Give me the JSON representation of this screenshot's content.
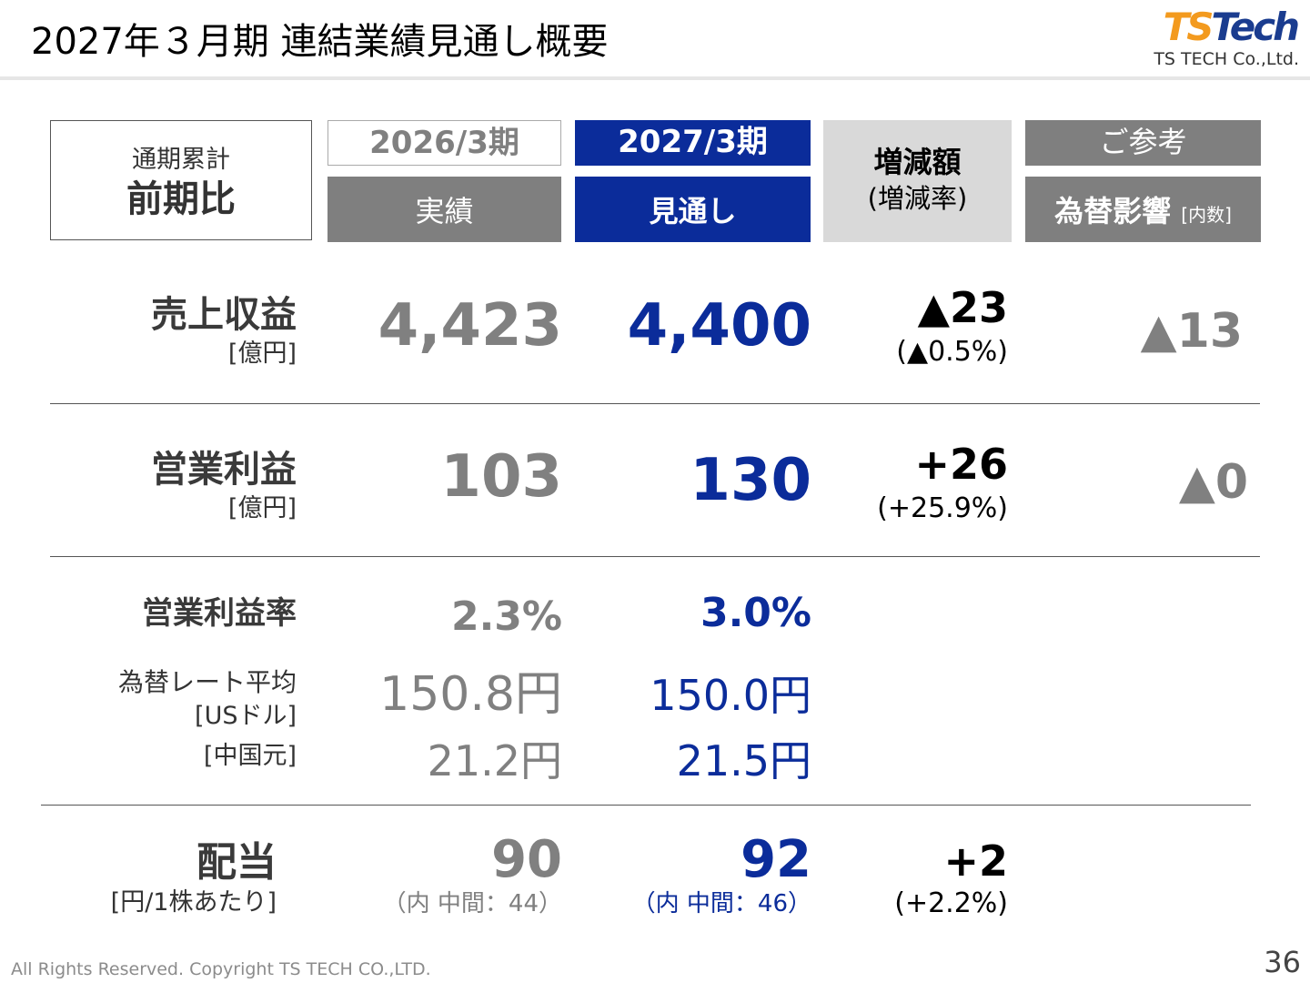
{
  "page": {
    "title": "2027年３月期 連結業績見通し概要",
    "page_number": "36",
    "footer": "All Rights Reserved. Copyright TS TECH CO.,LTD."
  },
  "logo": {
    "ts": "TS",
    "tech": "Tech",
    "sub": "TS TECH Co.,Ltd."
  },
  "header": {
    "label_line1": "通期累計",
    "label_line2": "前期比",
    "prev_year": "2026/3期",
    "prev_sub": "実績",
    "cur_year": "2027/3期",
    "cur_sub": "見通し",
    "diff_line1": "増減額",
    "diff_line2": "(増減率)",
    "ref_title": "ご参考",
    "ref_sub": "為替影響",
    "ref_sub_note": "[内数]"
  },
  "rows": {
    "sales": {
      "label": "売上収益",
      "unit": "[億円]",
      "prev": "4,423",
      "cur": "4,400",
      "diff": "▲23",
      "diff_rate": "(▲0.5%)",
      "fx": "▲13"
    },
    "op_income": {
      "label": "営業利益",
      "unit": "[億円]",
      "prev": "103",
      "cur": "130",
      "diff": "+26",
      "diff_rate": "(+25.9%)",
      "fx": "▲0"
    },
    "op_margin": {
      "label": "営業利益率",
      "prev": "2.3%",
      "cur": "3.0%"
    },
    "fx_rate": {
      "label": "為替レート平均",
      "usd_label": "[USドル]",
      "cny_label": "[中国元]",
      "usd_prev": "150.8円",
      "usd_cur": "150.0円",
      "cny_prev": "21.2円",
      "cny_cur": "21.5円"
    },
    "dividend": {
      "label": "配当",
      "unit": "[円/1株あたり]",
      "prev": "90",
      "prev_note": "（内 中間：44）",
      "cur": "92",
      "cur_note": "（内 中間：46）",
      "diff": "+2",
      "diff_rate": "(+2.2%)"
    }
  },
  "colors": {
    "accent_blue": "#0b2c9a",
    "gray_text": "#808080",
    "header_gray": "#7f7f7f",
    "diff_bg": "#d9d9d9",
    "logo_orange": "#f39a1e"
  }
}
